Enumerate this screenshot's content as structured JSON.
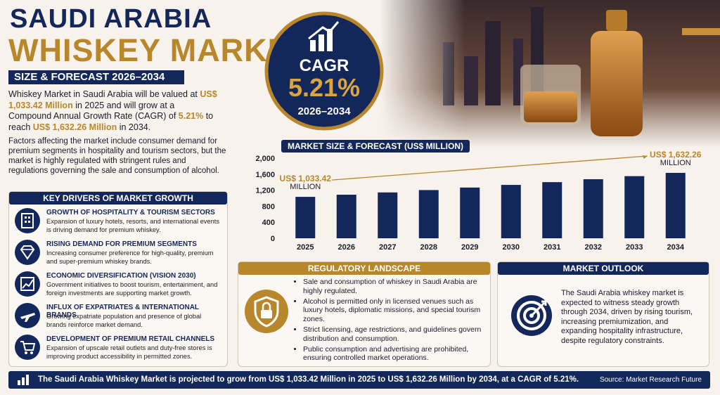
{
  "header": {
    "title_line1": "SAUDI ARABIA",
    "title_line2": "WHISKEY MARKET",
    "subtitle": "SIZE & FORECAST 2026–2034"
  },
  "intro": {
    "paragraph1": [
      "Whiskey Market in Saudi Arabia will be valued at ",
      "US$ 1,033.42 Million",
      " in 2025 and will grow at a Compound Annual Growth Rate (CAGR) of ",
      "5.21%",
      " to reach ",
      "US$ 1,632.26 Million",
      " in 2034."
    ],
    "paragraph2": "Factors affecting the market include consumer demand for premium segments in hospitality and tourism sectors, but the market is highly regulated with stringent rules and regulations governing the sale and consumption of alcohol."
  },
  "cagr": {
    "label": "CAGR",
    "value": "5.21%",
    "period": "2026–2034"
  },
  "key_drivers": {
    "title": "KEY DRIVERS OF MARKET GROWTH",
    "items": [
      {
        "title": "GROWTH OF HOSPITALITY & TOURISM SECTORS",
        "description": "Expansion of luxury hotels, resorts, and international events is driving demand for premium whiskey."
      },
      {
        "title": "RISING DEMAND FOR PREMIUM SEGMENTS",
        "description": "Increasing consumer preference for high-quality, premium and super-premium whiskey brands."
      },
      {
        "title": "ECONOMIC DIVERSIFICATION (VISION 2030)",
        "description": "Government initiatives to boost tourism, entertainment, and foreign investments are supporting market growth."
      },
      {
        "title": "INFLUX OF EXPATRIATES & INTERNATIONAL BRANDS",
        "description": "Growing expatriate population and presence of global brands reinforce market demand."
      },
      {
        "title": "DEVELOPMENT OF PREMIUM RETAIL CHANNELS",
        "description": "Expansion of upscale retail outlets and duty-free stores is improving product accessibility in permitted zones."
      }
    ]
  },
  "regulatory": {
    "title": "REGULATORY LANDSCAPE",
    "bullets": [
      "Sale and consumption of whiskey in Saudi Arabia are highly regulated.",
      "Alcohol is permitted only in licensed venues such as luxury hotels, diplomatic missions, and special tourism zones.",
      "Strict licensing, age restrictions, and guidelines govern distribution and consumption.",
      "Public consumption and advertising are prohibited, ensuring controlled market operations."
    ]
  },
  "outlook": {
    "title": "MARKET OUTLOOK",
    "text": "The Saudi Arabia whiskey market is expected to witness steady growth through 2034, driven by rising tourism, increasing premiumization, and expanding hospitality infrastructure, despite regulatory constraints."
  },
  "footer": {
    "text": "The Saudi Arabia Whiskey Market is projected to grow from US$ 1,033.42 Million in 2025 to US$ 1,632.26 Million by 2034, at a CAGR of 5.21%.",
    "source": "Source: Market Research Future"
  },
  "chart_data": {
    "type": "bar",
    "title": "MARKET SIZE & FORECAST (US$ MILLION)",
    "categories": [
      "2025",
      "2026",
      "2027",
      "2028",
      "2029",
      "2030",
      "2031",
      "2032",
      "2033",
      "2034"
    ],
    "values": [
      1033.42,
      1087,
      1144,
      1203,
      1266,
      1332,
      1401,
      1474,
      1551,
      1632.26
    ],
    "value_labels": [
      "US$ 1,033.42 MILLION",
      null,
      null,
      null,
      null,
      null,
      null,
      null,
      null,
      "US$ 1,632.26 MILLION"
    ],
    "color": "#14275a",
    "ylim": [
      0,
      2000
    ],
    "yticks": [
      0,
      400,
      800,
      {
        "value": 1200,
        "label": "1,200"
      },
      {
        "value": 1600,
        "label": "1,600"
      },
      {
        "value": 2000,
        "label": "2,000"
      }
    ],
    "grid": false
  }
}
